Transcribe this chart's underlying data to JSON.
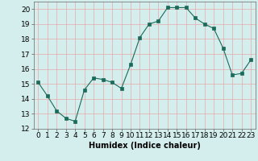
{
  "x": [
    0,
    1,
    2,
    3,
    4,
    5,
    6,
    7,
    8,
    9,
    10,
    11,
    12,
    13,
    14,
    15,
    16,
    17,
    18,
    19,
    20,
    21,
    22,
    23
  ],
  "y": [
    15.1,
    14.2,
    13.2,
    12.7,
    12.5,
    14.6,
    15.4,
    15.3,
    15.1,
    14.7,
    16.3,
    18.1,
    19.0,
    19.2,
    20.1,
    20.1,
    20.1,
    19.4,
    19.0,
    18.7,
    17.4,
    15.6,
    15.7,
    16.6
  ],
  "line_color": "#1a6b5a",
  "marker": "s",
  "marker_size": 2.5,
  "bg_color": "#d4eeee",
  "grid_color": "#e8a8a8",
  "xlabel": "Humidex (Indice chaleur)",
  "xlim": [
    -0.5,
    23.5
  ],
  "ylim": [
    12,
    20.5
  ],
  "yticks": [
    12,
    13,
    14,
    15,
    16,
    17,
    18,
    19,
    20
  ],
  "xticks": [
    0,
    1,
    2,
    3,
    4,
    5,
    6,
    7,
    8,
    9,
    10,
    11,
    12,
    13,
    14,
    15,
    16,
    17,
    18,
    19,
    20,
    21,
    22,
    23
  ],
  "xlabel_fontsize": 7,
  "tick_fontsize": 6.5
}
